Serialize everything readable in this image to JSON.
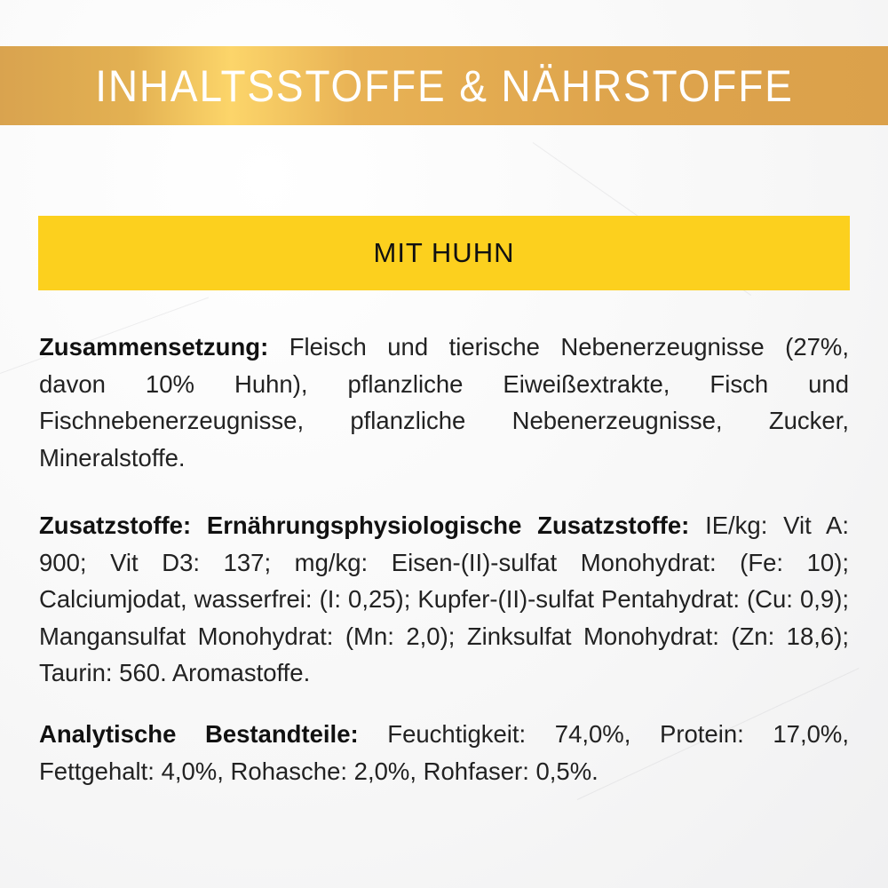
{
  "header": {
    "title": "INHALTSSTOFFE & NÄHRSTOFFE"
  },
  "variant": {
    "label": "MIT HUHN"
  },
  "sections": [
    {
      "label": "Zusammensetzung:",
      "text": "Fleisch und tierische Nebenerzeugnisse (27%, davon 10% Huhn), pflanzliche Eiweißextrakte, Fisch und Fischnebenerzeugnisse, pflanzliche Nebenerzeugnisse, Zucker, Mineralstoffe."
    },
    {
      "label": "Zusatzstoffe: Ernährungsphysiologische Zusatzstoffe:",
      "text": "IE/kg: Vit A: 900; Vit D3: 137; mg/kg: Eisen-(II)-sulfat Monohydrat: (Fe: 10); Calciumjodat, wasserfrei: (I: 0,25); Kupfer-(II)-sulfat Pentahydrat: (Cu: 0,9); Mangansulfat Monohydrat: (Mn: 2,0); Zinksulfat Monohydrat: (Zn: 18,6); Taurin: 560. Aromastoffe."
    },
    {
      "label": "Analytische Bestandteile:",
      "text": "Feuchtigkeit: 74,0%, Protein: 17,0%, Fettgehalt: 4,0%, Rohasche: 2,0%, Rohfaser: 0,5%."
    }
  ],
  "colors": {
    "title_band": "#dea44c",
    "variant_box": "#fcd01e",
    "title_text": "#ffffff"
  }
}
